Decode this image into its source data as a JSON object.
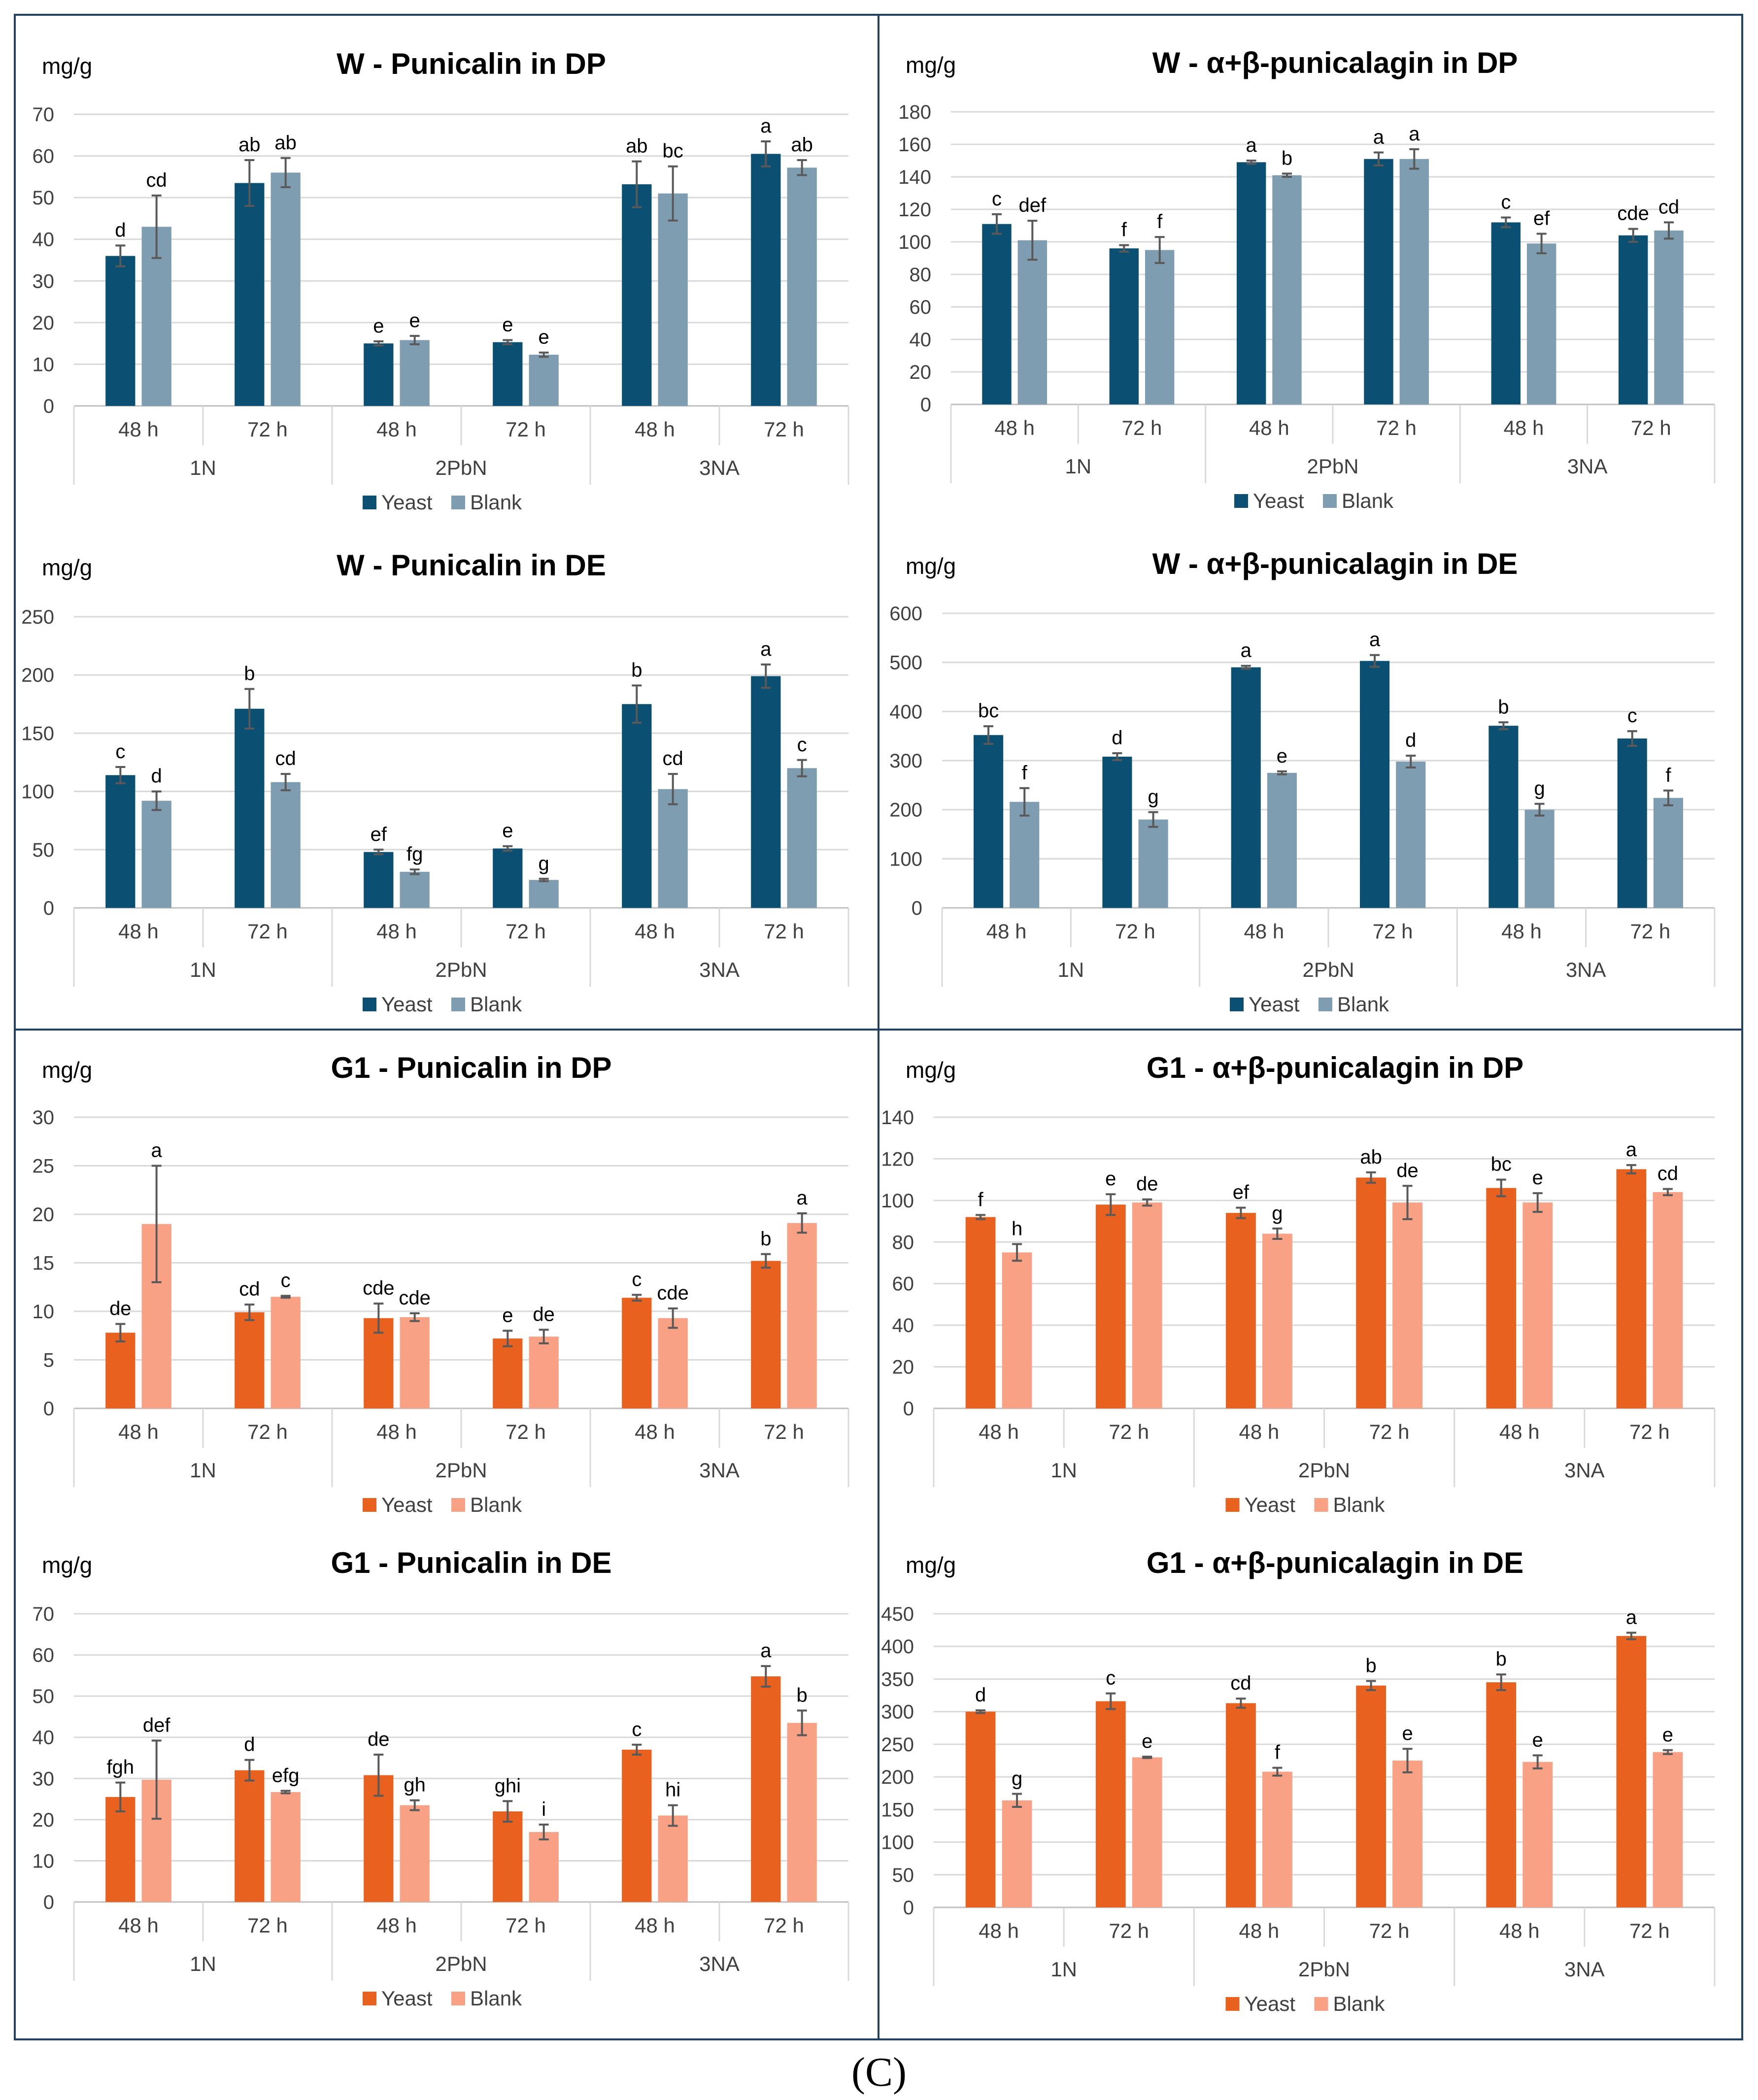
{
  "figure": {
    "caption": "(C)",
    "colors": {
      "yeast_blue": "#0b4f72",
      "blank_blue": "#7f9db0",
      "yeast_orange": "#e8611f",
      "blank_orange": "#f9a184",
      "grid": "#d9d9d9",
      "panel_border": "#244061",
      "error_bar": "#595959",
      "text": "#404040"
    }
  },
  "chart_data": [
    {
      "type": "bar",
      "title": "W - Punicalin in DP",
      "ylabel": "mg/g",
      "ylim": [
        0,
        70
      ],
      "ystep": 10,
      "categories": [
        "48 h",
        "72 h",
        "48 h",
        "72 h",
        "48 h",
        "72 h"
      ],
      "groups": [
        "1N",
        "2PbN",
        "3NA"
      ],
      "legend": [
        "Yeast",
        "Blank"
      ],
      "series": [
        {
          "name": "Yeast",
          "values": [
            36,
            53.5,
            15,
            15.3,
            53.2,
            60.5
          ],
          "errors": [
            2.5,
            5.5,
            0.5,
            0.5,
            5.5,
            3
          ],
          "labels": [
            "d",
            "ab",
            "e",
            "e",
            "ab",
            "a"
          ]
        },
        {
          "name": "Blank",
          "values": [
            43,
            56,
            15.8,
            12.3,
            51,
            57.2
          ],
          "errors": [
            7.5,
            3.5,
            1,
            0.5,
            6.5,
            1.8
          ],
          "labels": [
            "cd",
            "ab",
            "e",
            "e",
            "bc",
            "ab"
          ]
        }
      ]
    },
    {
      "type": "bar",
      "title": "W - α+β-punicalagin in DP",
      "ylabel": "mg/g",
      "ylim": [
        0,
        180
      ],
      "ystep": 20,
      "categories": [
        "48 h",
        "72 h",
        "48 h",
        "72 h",
        "48 h",
        "72 h"
      ],
      "groups": [
        "1N",
        "2PbN",
        "3NA"
      ],
      "legend": [
        "Yeast",
        "Blank"
      ],
      "series": [
        {
          "name": "Yeast",
          "values": [
            111,
            96,
            149,
            151,
            112,
            104
          ],
          "errors": [
            6,
            2,
            1,
            4,
            3,
            4
          ],
          "labels": [
            "c",
            "f",
            "a",
            "a",
            "c",
            "cde"
          ]
        },
        {
          "name": "Blank",
          "values": [
            101,
            95,
            141,
            151,
            99,
            107
          ],
          "errors": [
            12,
            8,
            1,
            6,
            6,
            5
          ],
          "labels": [
            "def",
            "f",
            "b",
            "a",
            "ef",
            "cd"
          ]
        }
      ]
    },
    {
      "type": "bar",
      "title": "W - Punicalin in DE",
      "ylabel": "mg/g",
      "ylim": [
        0,
        250
      ],
      "ystep": 50,
      "categories": [
        "48 h",
        "72 h",
        "48 h",
        "72 h",
        "48 h",
        "72 h"
      ],
      "groups": [
        "1N",
        "2PbN",
        "3NA"
      ],
      "legend": [
        "Yeast",
        "Blank"
      ],
      "series": [
        {
          "name": "Yeast",
          "values": [
            114,
            171,
            48,
            51,
            175,
            199
          ],
          "errors": [
            7,
            17,
            2,
            2,
            16,
            10
          ],
          "labels": [
            "c",
            "b",
            "ef",
            "e",
            "b",
            "a"
          ]
        },
        {
          "name": "Blank",
          "values": [
            92,
            108,
            31,
            24,
            102,
            120
          ],
          "errors": [
            8,
            7,
            2,
            1,
            13,
            7
          ],
          "labels": [
            "d",
            "cd",
            "fg",
            "g",
            "cd",
            "c"
          ]
        }
      ]
    },
    {
      "type": "bar",
      "title": "W - α+β-punicalagin in DE",
      "ylabel": "mg/g",
      "ylim": [
        0,
        600
      ],
      "ystep": 100,
      "categories": [
        "48 h",
        "72 h",
        "48 h",
        "72 h",
        "48 h",
        "72 h"
      ],
      "groups": [
        "1N",
        "2PbN",
        "3NA"
      ],
      "legend": [
        "Yeast",
        "Blank"
      ],
      "series": [
        {
          "name": "Yeast",
          "values": [
            352,
            308,
            490,
            503,
            371,
            345
          ],
          "errors": [
            18,
            7,
            3,
            12,
            7,
            15
          ],
          "labels": [
            "bc",
            "d",
            "a",
            "a",
            "b",
            "c"
          ]
        },
        {
          "name": "Blank",
          "values": [
            216,
            180,
            275,
            298,
            200,
            224
          ],
          "errors": [
            28,
            15,
            3,
            12,
            12,
            15
          ],
          "labels": [
            "f",
            "g",
            "e",
            "d",
            "g",
            "f"
          ]
        }
      ]
    },
    {
      "type": "bar",
      "title": "G1 - Punicalin in DP",
      "ylabel": "mg/g",
      "ylim": [
        0,
        30
      ],
      "ystep": 5,
      "categories": [
        "48 h",
        "72 h",
        "48 h",
        "72 h",
        "48 h",
        "72 h"
      ],
      "groups": [
        "1N",
        "2PbN",
        "3NA"
      ],
      "legend": [
        "Yeast",
        "Blank"
      ],
      "series": [
        {
          "name": "Yeast",
          "values": [
            7.8,
            9.9,
            9.3,
            7.2,
            11.4,
            15.2
          ],
          "errors": [
            0.9,
            0.8,
            1.5,
            0.8,
            0.3,
            0.7
          ],
          "labels": [
            "de",
            "cd",
            "cde",
            "e",
            "c",
            "b"
          ]
        },
        {
          "name": "Blank",
          "values": [
            19,
            11.5,
            9.4,
            7.4,
            9.3,
            19.1
          ],
          "errors": [
            6,
            0.1,
            0.4,
            0.7,
            1,
            1
          ],
          "labels": [
            "a",
            "c",
            "cde",
            "de",
            "cde",
            "a"
          ]
        }
      ]
    },
    {
      "type": "bar",
      "title": "G1 - α+β-punicalagin in DP",
      "ylabel": "mg/g",
      "ylim": [
        0,
        140
      ],
      "ystep": 20,
      "categories": [
        "48 h",
        "72 h",
        "48 h",
        "72 h",
        "48 h",
        "72 h"
      ],
      "groups": [
        "1N",
        "2PbN",
        "3NA"
      ],
      "legend": [
        "Yeast",
        "Blank"
      ],
      "series": [
        {
          "name": "Yeast",
          "values": [
            92,
            98,
            94,
            111,
            106,
            115
          ],
          "errors": [
            1,
            5,
            2.5,
            2.5,
            4,
            2
          ],
          "labels": [
            "f",
            "e",
            "ef",
            "ab",
            "bc",
            "a"
          ]
        },
        {
          "name": "Blank",
          "values": [
            75,
            99,
            84,
            99,
            99,
            104
          ],
          "errors": [
            4,
            1.5,
            2.5,
            8,
            4.5,
            1.5
          ],
          "labels": [
            "h",
            "de",
            "g",
            "de",
            "e",
            "cd"
          ]
        }
      ]
    },
    {
      "type": "bar",
      "title": "G1 - Punicalin in DE",
      "ylabel": "mg/g",
      "ylim": [
        0,
        70
      ],
      "ystep": 10,
      "categories": [
        "48 h",
        "72 h",
        "48 h",
        "72 h",
        "48 h",
        "72 h"
      ],
      "groups": [
        "1N",
        "2PbN",
        "3NA"
      ],
      "legend": [
        "Yeast",
        "Blank"
      ],
      "series": [
        {
          "name": "Yeast",
          "values": [
            25.5,
            32,
            30.8,
            22,
            37,
            54.8
          ],
          "errors": [
            3.5,
            2.5,
            5,
            2.5,
            1.2,
            2.5
          ],
          "labels": [
            "fgh",
            "d",
            "de",
            "ghi",
            "c",
            "a"
          ]
        },
        {
          "name": "Blank",
          "values": [
            29.7,
            26.7,
            23.5,
            17,
            21,
            43.5
          ],
          "errors": [
            9.5,
            0.3,
            1.2,
            1.8,
            2.5,
            3
          ],
          "labels": [
            "def",
            "efg",
            "gh",
            "i",
            "hi",
            "b"
          ]
        }
      ]
    },
    {
      "type": "bar",
      "title": "G1 - α+β-punicalagin in DE",
      "ylabel": "mg/g",
      "ylim": [
        0,
        450
      ],
      "ystep": 50,
      "categories": [
        "48 h",
        "72 h",
        "48 h",
        "72 h",
        "48 h",
        "72 h"
      ],
      "groups": [
        "1N",
        "2PbN",
        "3NA"
      ],
      "legend": [
        "Yeast",
        "Blank"
      ],
      "series": [
        {
          "name": "Yeast",
          "values": [
            300,
            316,
            313,
            340,
            345,
            416
          ],
          "errors": [
            2,
            12,
            7,
            7,
            12,
            5
          ],
          "labels": [
            "d",
            "c",
            "cd",
            "b",
            "b",
            "a"
          ]
        },
        {
          "name": "Blank",
          "values": [
            164,
            230,
            208,
            225,
            223,
            238
          ],
          "errors": [
            10,
            1,
            6,
            18,
            10,
            3
          ],
          "labels": [
            "g",
            "e",
            "f",
            "e",
            "e",
            "e"
          ]
        }
      ]
    }
  ]
}
